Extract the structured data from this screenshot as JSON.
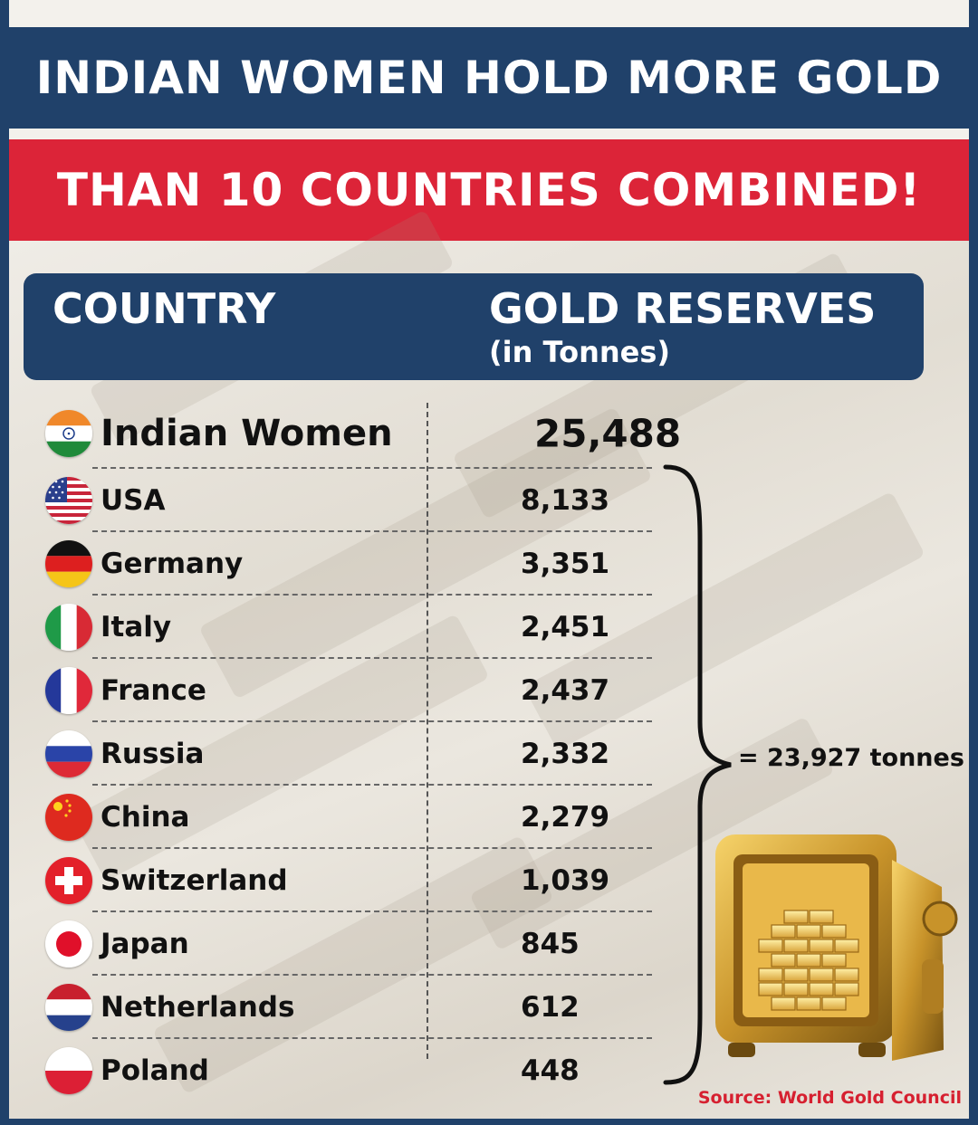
{
  "title_line1": "INDIAN WOMEN HOLD MORE GOLD",
  "title_line2": "THAN 10 COUNTRIES COMBINED!",
  "table": {
    "col_country": "COUNTRY",
    "col_reserves": "GOLD RESERVES",
    "col_unit": "(in Tonnes)",
    "rows": [
      {
        "name": "Indian Women",
        "value": "25,488",
        "flag": "india-flag-icon"
      },
      {
        "name": "USA",
        "value": "8,133",
        "flag": "usa-flag-icon"
      },
      {
        "name": "Germany",
        "value": "3,351",
        "flag": "germany-flag-icon"
      },
      {
        "name": "Italy",
        "value": "2,451",
        "flag": "italy-flag-icon"
      },
      {
        "name": "France",
        "value": "2,437",
        "flag": "france-flag-icon"
      },
      {
        "name": "Russia",
        "value": "2,332",
        "flag": "russia-flag-icon"
      },
      {
        "name": "China",
        "value": "2,279",
        "flag": "china-flag-icon"
      },
      {
        "name": "Switzerland",
        "value": "1,039",
        "flag": "switzerland-flag-icon"
      },
      {
        "name": "Japan",
        "value": "845",
        "flag": "japan-flag-icon"
      },
      {
        "name": "Netherlands",
        "value": "612",
        "flag": "netherlands-flag-icon"
      },
      {
        "name": "Poland",
        "value": "448",
        "flag": "poland-flag-icon"
      }
    ]
  },
  "total_label": "= 23,927 tonnes",
  "source": "Source: World Gold Council",
  "colors": {
    "navy": "#20416a",
    "red": "#dc2438",
    "source_red": "#d62030"
  },
  "icons": [
    "brace-icon",
    "gold-safe-icon"
  ]
}
